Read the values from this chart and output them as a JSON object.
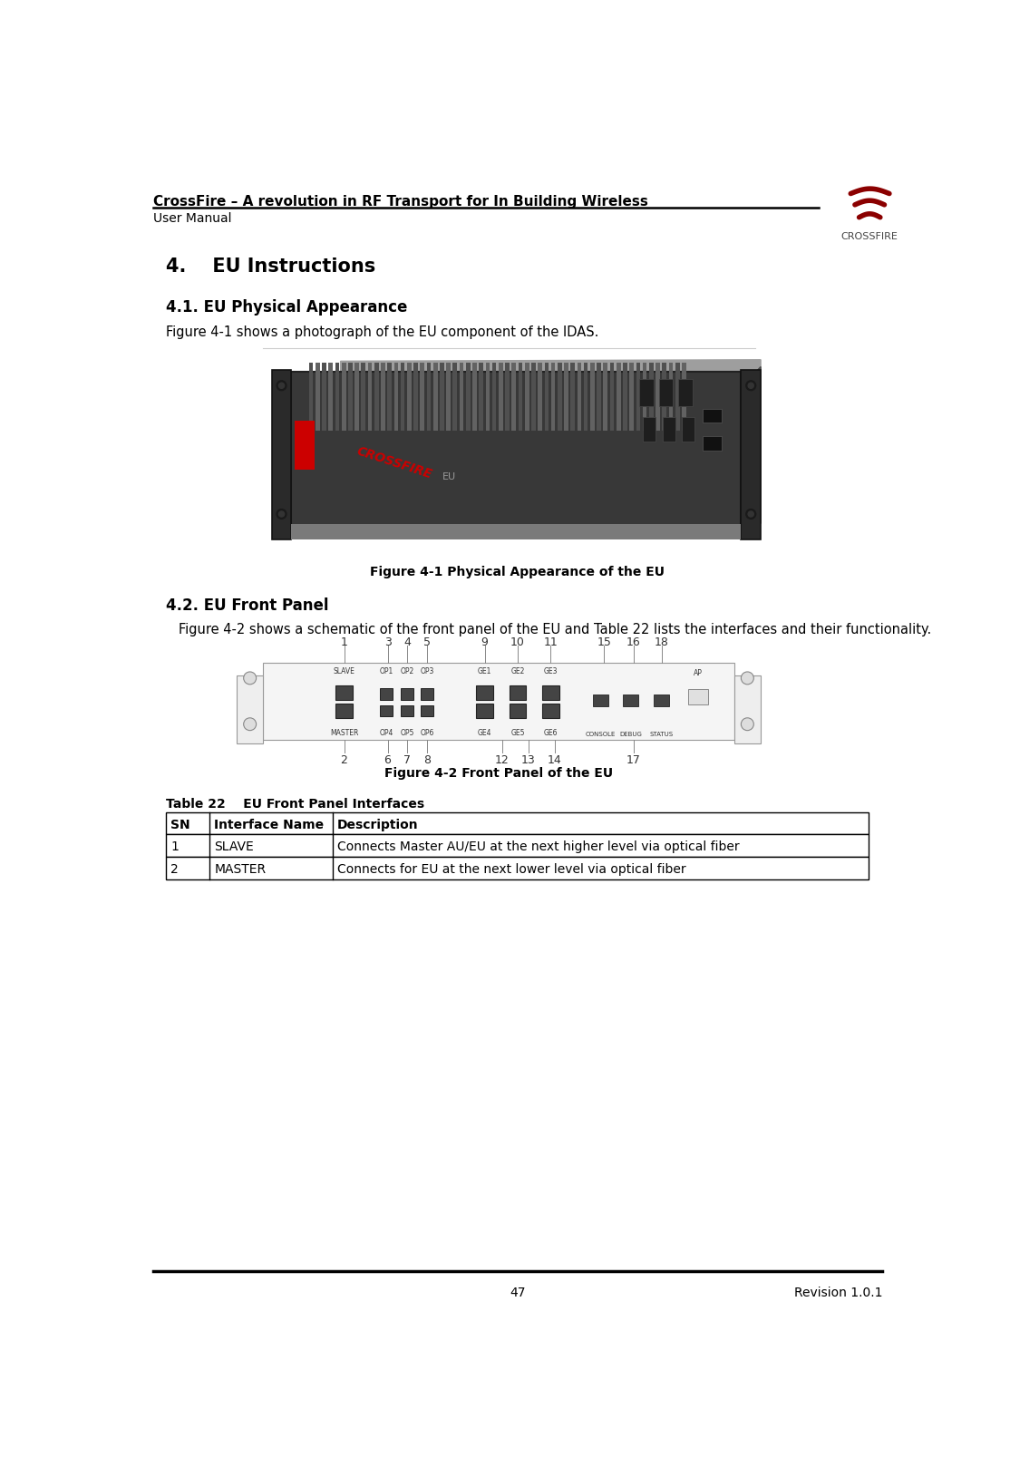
{
  "header_title": "CrossFire – A revolution in RF Transport for In Building Wireless",
  "header_subtitle": "User Manual",
  "header_logo_text": "CROSSFIRE",
  "section_title": "4.    EU Instructions",
  "subsection1_title": "4.1. EU Physical Appearance",
  "subsection1_body": "Figure 4-1 shows a photograph of the EU component of the IDAS.",
  "figure1_caption": "Figure 4-1 Physical Appearance of the EU",
  "subsection2_title": "4.2. EU Front Panel",
  "subsection2_body": "Figure 4-2 shows a schematic of the front panel of the EU and Table 22 lists the interfaces and their functionality.",
  "figure2_caption": "Figure 4-2 Front Panel of the EU",
  "table_title": "Table 22    EU Front Panel Interfaces",
  "table_headers": [
    "SN",
    "Interface Name",
    "Description"
  ],
  "table_rows": [
    [
      "1",
      "SLAVE",
      "Connects Master AU/EU at the next higher level via optical fiber"
    ],
    [
      "2",
      "MASTER",
      "Connects for EU at the next lower level via optical fiber"
    ]
  ],
  "footer_page": "47",
  "footer_revision": "Revision 1.0.1",
  "bg_color": "#ffffff",
  "text_color": "#000000",
  "table_border_color": "#000000",
  "section_heading_color": "#000000",
  "logo_wave_color": "#8B0000",
  "logo_wave_color2": "#cc2222",
  "device_dark": "#3a3a3a",
  "device_mid": "#555555",
  "device_light": "#888888",
  "top_numbers": [
    "1",
    "3",
    "4",
    "5",
    "9",
    "10",
    "11",
    "15",
    "16",
    "18"
  ],
  "top_x_pos": [
    310,
    372,
    400,
    428,
    510,
    557,
    604,
    680,
    722,
    762
  ],
  "bot_numbers": [
    "2",
    "6",
    "7",
    "8",
    "12",
    "13",
    "14",
    "17"
  ],
  "bot_x_pos": [
    310,
    372,
    400,
    428,
    535,
    572,
    610,
    722
  ]
}
